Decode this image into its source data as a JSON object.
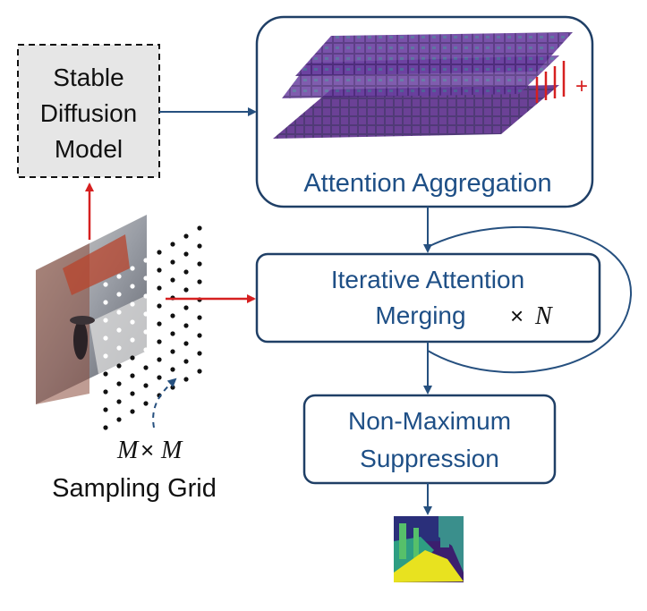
{
  "nodes": {
    "sd_model": {
      "lines": [
        "Stable",
        "Diffusion",
        "Model"
      ]
    },
    "attention_aggregation": {
      "label": "Attention Aggregation",
      "plus": "+"
    },
    "iterative_merging": {
      "line1": "Iterative Attention",
      "line2": "Merging",
      "times": "×",
      "n": "N"
    },
    "nms": {
      "line1": "Non-Maximum",
      "line2": "Suppression"
    },
    "sampling_grid": {
      "math_m1": "M",
      "times": "×",
      "math_m2": "M",
      "label": "Sampling Grid"
    }
  },
  "colors": {
    "box_stroke": "#1f3f66",
    "text_blue": "#1e4f86",
    "arrow_red": "#d62020",
    "arrow_blue": "#26507f",
    "sd_fill": "#e6e6e6",
    "attention_purple": "#5b2c8a",
    "attention_teal": "#2f8f8f"
  }
}
